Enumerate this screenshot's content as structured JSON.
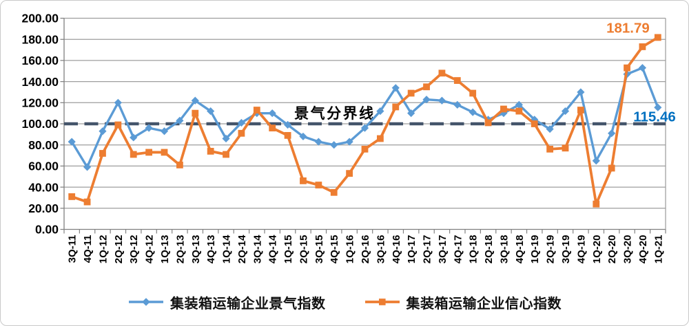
{
  "chart_data": {
    "type": "line",
    "title": "",
    "categories": [
      "3Q-11",
      "4Q-11",
      "1Q-12",
      "2Q-12",
      "3Q-12",
      "4Q-12",
      "1Q-13",
      "2Q-13",
      "3Q-13",
      "4Q-13",
      "1Q-14",
      "2Q-14",
      "3Q-14",
      "4Q-14",
      "1Q-15",
      "2Q-15",
      "3Q-15",
      "4Q-15",
      "1Q-16",
      "2Q-16",
      "3Q-16",
      "4Q-16",
      "1Q-17",
      "2Q-17",
      "3Q-17",
      "4Q-17",
      "1Q-18",
      "2Q-18",
      "3Q-18",
      "4Q-18",
      "1Q-19",
      "2Q-19",
      "3Q-19",
      "4Q-19",
      "1Q-20",
      "2Q-20",
      "3Q-20",
      "4Q-20",
      "1Q-21"
    ],
    "series": [
      {
        "name": "集装箱运输企业景气指数",
        "marker": "diamond",
        "color": "#5B9BD5",
        "values": [
          83,
          59,
          93,
          120,
          87,
          96,
          93,
          103,
          122,
          112,
          86,
          101,
          110,
          110,
          99,
          88,
          83,
          80,
          83,
          96,
          112,
          134,
          110,
          123,
          122,
          118,
          111,
          104,
          110,
          118,
          104,
          95,
          112,
          130,
          65,
          91,
          147,
          153,
          115.46
        ]
      },
      {
        "name": "集装箱运输企业信心指数",
        "marker": "square",
        "color": "#ED7D31",
        "values": [
          31,
          26,
          72,
          99,
          71,
          73,
          73,
          61,
          110,
          74,
          71,
          91,
          113,
          96,
          89,
          46,
          42,
          35,
          53,
          76,
          86,
          116,
          129,
          135,
          148,
          141,
          129,
          101,
          114,
          112,
          100,
          76,
          77,
          113,
          24,
          58,
          153,
          173,
          181.79
        ]
      }
    ],
    "ylim": [
      0,
      200
    ],
    "y_ticks": [
      0,
      20,
      40,
      60,
      80,
      100,
      120,
      140,
      160,
      180,
      200
    ],
    "y_tick_labels": [
      "0.00",
      "20.00",
      "40.00",
      "60.00",
      "80.00",
      "100.00",
      "120.00",
      "140.00",
      "160.00",
      "180.00",
      "200.00"
    ],
    "grid": true,
    "legend_position": "bottom",
    "reference_line": {
      "value": 100,
      "label": "景气分界线",
      "color": "#44546A"
    },
    "annotations": [
      {
        "text": "181.79",
        "series": "集装箱运输企业信心指数",
        "category": "1Q-21",
        "color": "#ED7D31",
        "placement": "above-left"
      },
      {
        "text": "115.46",
        "series": "集装箱运输企业景气指数",
        "category": "1Q-21",
        "color": "#0070C0",
        "placement": "below-left"
      }
    ]
  }
}
